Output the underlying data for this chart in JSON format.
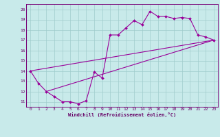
{
  "xlabel": "Windchill (Refroidissement éolien,°C)",
  "xlim": [
    -0.5,
    23.5
  ],
  "ylim": [
    10.5,
    20.5
  ],
  "xticks": [
    0,
    1,
    2,
    3,
    4,
    5,
    6,
    7,
    8,
    9,
    10,
    11,
    12,
    13,
    14,
    15,
    16,
    17,
    18,
    19,
    20,
    21,
    22,
    23
  ],
  "yticks": [
    11,
    12,
    13,
    14,
    15,
    16,
    17,
    18,
    19,
    20
  ],
  "background_color": "#c8eaea",
  "grid_color": "#a0cccc",
  "line_color": "#990099",
  "line1_x": [
    0,
    1,
    2,
    3,
    4,
    5,
    6,
    7,
    8,
    9,
    10,
    11,
    12,
    13,
    14,
    15,
    16,
    17,
    18,
    19,
    20,
    21,
    22,
    23
  ],
  "line1_y": [
    14,
    12.8,
    12,
    11.5,
    11,
    11,
    10.8,
    11.1,
    13.9,
    13.3,
    17.5,
    17.5,
    18.2,
    18.9,
    18.5,
    19.8,
    19.3,
    19.3,
    19.1,
    19.2,
    19.1,
    17.5,
    17.3,
    17
  ],
  "line2_x": [
    0,
    23
  ],
  "line2_y": [
    14,
    17
  ],
  "line3_x": [
    2,
    23
  ],
  "line3_y": [
    12,
    17
  ]
}
